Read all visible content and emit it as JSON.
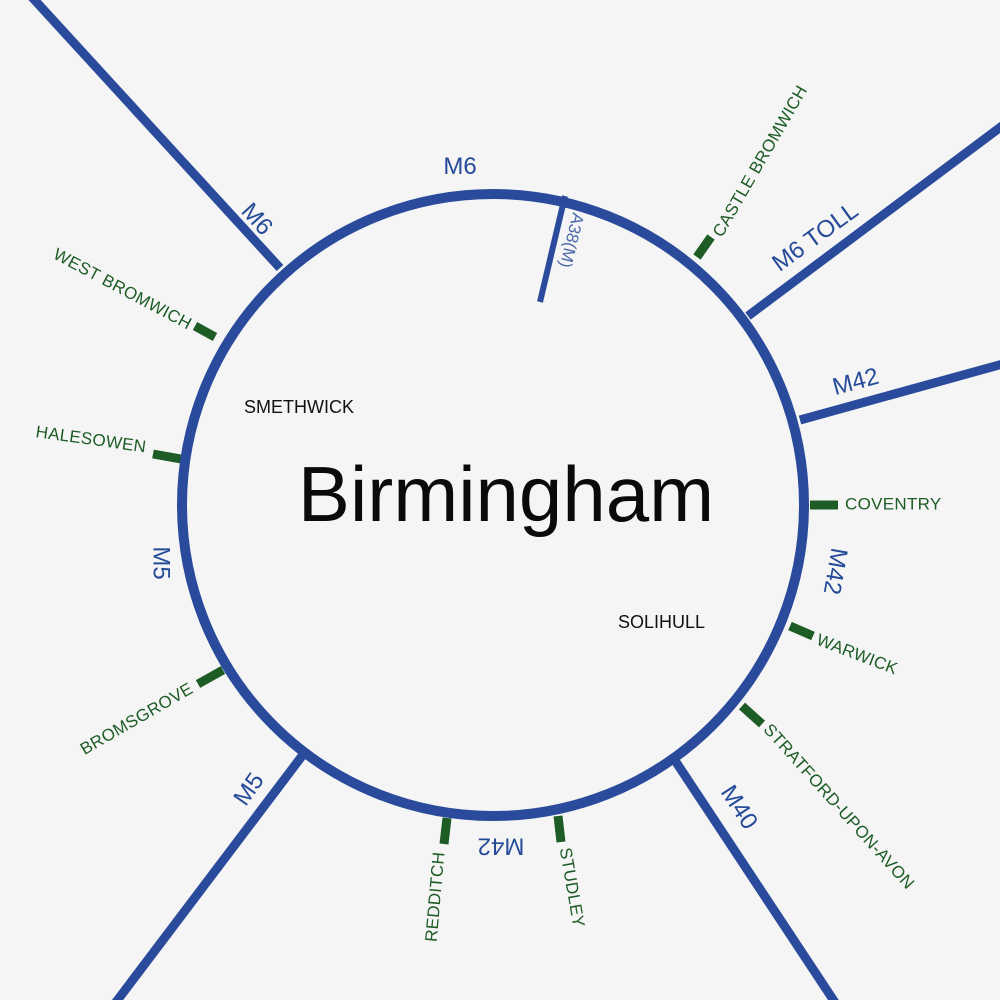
{
  "colors": {
    "background": "#f5f5f6",
    "motorway": "#2a4b9b",
    "motorway_text": "#244a98",
    "spur": "#4a68a8",
    "junction": "#1d5c25",
    "junction_text": "#1d5c25",
    "text": "#0a0a0a"
  },
  "map": {
    "city": "Birmingham",
    "districts": [
      "SMETHWICK",
      "SOLIHULL"
    ],
    "ring_road": "M6",
    "spur": "A38(M)",
    "motorway_labels": [
      "M6",
      "M6 TOLL",
      "M42",
      "M42",
      "M40",
      "M42",
      "M5",
      "M5"
    ],
    "towns": [
      "CASTLE BROMWICH",
      "WEST BROMWICH",
      "HALESOWEN",
      "BROMSGROVE",
      "COVENTRY",
      "WARWICK",
      "STRATFORD-UPON-AVON",
      "REDDITCH",
      "STUDLEY"
    ]
  }
}
